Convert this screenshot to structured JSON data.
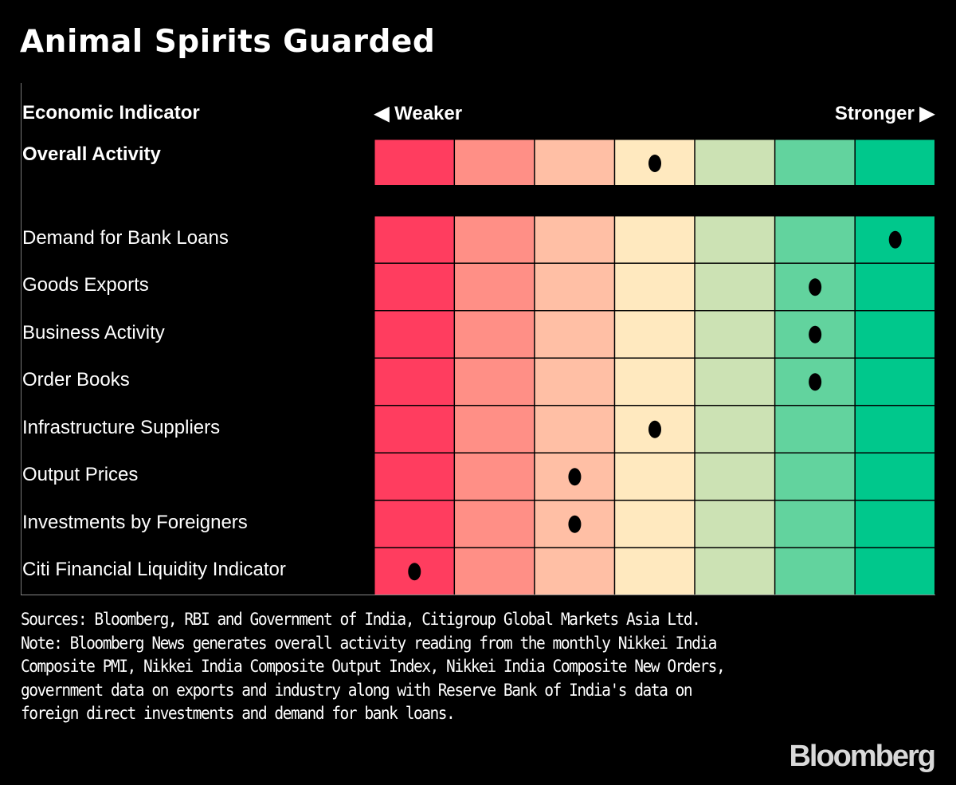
{
  "header": {
    "title": "Animal Spirits Guarded",
    "column_label": "Economic Indicator",
    "weaker_label": "◀ Weaker",
    "stronger_label": "Stronger ▶"
  },
  "footer": {
    "sources": "Sources: Bloomberg, RBI and Government of India, Citigroup Global Markets Asia Ltd.",
    "note": "Note: Bloomberg News generates overall activity reading from the monthly Nikkei India Composite PMI, Nikkei India Composite Output Index, Nikkei India Composite New Orders, government data on exports and industry along with Reserve Bank of India's data on foreign direct investments and demand for bank loans.",
    "logo": "Bloomberg"
  },
  "chart_data": {
    "type": "heatmap",
    "title": "Animal Spirits Guarded",
    "xlabel": "◀ Weaker … Stronger ▶",
    "ylabel": "Economic Indicator",
    "scale_levels": 7,
    "scale_description": "Position 1 = weakest, 7 = strongest",
    "colors": [
      "#ff3d5f",
      "#ff8f86",
      "#ffbfa5",
      "#ffe9bf",
      "#cce2b4",
      "#62d39e",
      "#00c88c"
    ],
    "marker_color": "#000000",
    "overall": {
      "label": "Overall Activity",
      "position": 4
    },
    "rows": [
      {
        "label": "Demand for Bank Loans",
        "position": 7
      },
      {
        "label": "Goods Exports",
        "position": 6
      },
      {
        "label": "Business Activity",
        "position": 6
      },
      {
        "label": "Order Books",
        "position": 6
      },
      {
        "label": "Infrastructure Suppliers",
        "position": 4
      },
      {
        "label": "Output Prices",
        "position": 3
      },
      {
        "label": "Investments by Foreigners",
        "position": 3
      },
      {
        "label": "Citi Financial Liquidity Indicator",
        "position": 1
      }
    ]
  }
}
